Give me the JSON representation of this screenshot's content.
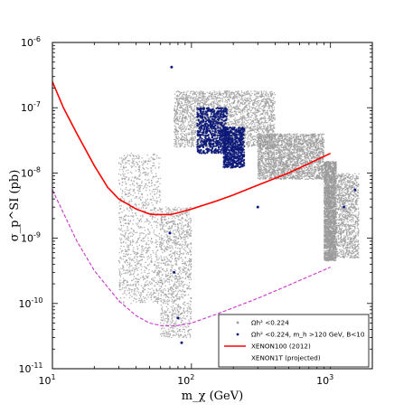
{
  "chart_data": {
    "type": "scatter",
    "title": "",
    "xlabel": "m_χ (GeV)",
    "ylabel": "σ_p^SI (pb)",
    "x_scale": "log",
    "y_scale": "log",
    "xlim": [
      10,
      2000
    ],
    "ylim": [
      1e-11,
      1e-06
    ],
    "x_ticks": [
      {
        "value": 10,
        "base": "10",
        "exp": "1"
      },
      {
        "value": 100,
        "base": "10",
        "exp": "2"
      },
      {
        "value": 1000,
        "base": "10",
        "exp": "3"
      }
    ],
    "y_ticks": [
      {
        "value": 1e-11,
        "base": "10",
        "exp": "-11"
      },
      {
        "value": 1e-10,
        "base": "10",
        "exp": "-10"
      },
      {
        "value": 1e-09,
        "base": "10",
        "exp": "-9"
      },
      {
        "value": 1e-08,
        "base": "10",
        "exp": "-8"
      },
      {
        "value": 1e-07,
        "base": "10",
        "exp": "-7"
      },
      {
        "value": 1e-06,
        "base": "10",
        "exp": "-6"
      }
    ],
    "grid": false,
    "legend_position": "bottom-right",
    "series": [
      {
        "name": "Ωh² <0.224",
        "kind": "scatter",
        "color": "#9a9a9a",
        "regions": [
          {
            "x": [
              75,
              400
            ],
            "y": [
              2.5e-08,
              1.8e-07
            ]
          },
          {
            "x": [
              300,
              900
            ],
            "y": [
              8e-09,
              4e-08
            ]
          },
          {
            "x": [
              900,
              1100
            ],
            "y": [
              4.5e-10,
              1.5e-08
            ]
          },
          {
            "x": [
              30,
              60
            ],
            "y": [
              1e-10,
              2e-08
            ]
          },
          {
            "x": [
              60,
              100
            ],
            "y": [
              3e-11,
              3e-09
            ]
          },
          {
            "x": [
              1100,
              1600
            ],
            "y": [
              5e-10,
              1e-08
            ]
          }
        ]
      },
      {
        "name": "Ωh² <0.224, m_h >120 GeV, B<10",
        "kind": "scatter",
        "color": "#0d1a78",
        "regions": [
          {
            "x": [
              110,
              180
            ],
            "y": [
              2e-08,
              1e-07
            ]
          },
          {
            "x": [
              170,
              240
            ],
            "y": [
              1.2e-08,
              5e-08
            ]
          }
        ],
        "points": [
          {
            "x": 72,
            "y": 4.2e-07
          },
          {
            "x": 70,
            "y": 1.2e-09
          },
          {
            "x": 75,
            "y": 3e-10
          },
          {
            "x": 80,
            "y": 6e-11
          },
          {
            "x": 85,
            "y": 2.5e-11
          },
          {
            "x": 1250,
            "y": 3e-09
          },
          {
            "x": 1500,
            "y": 5.5e-09
          },
          {
            "x": 300,
            "y": 3e-09
          }
        ]
      },
      {
        "name": "XENON100 (2012)",
        "kind": "line",
        "color": "#ff0000",
        "style": "solid",
        "x": [
          10,
          12,
          15,
          20,
          25,
          30,
          40,
          50,
          55,
          70,
          80,
          100,
          150,
          200,
          300,
          500,
          700,
          1000
        ],
        "y": [
          2.5e-07,
          1e-07,
          4e-08,
          1.3e-08,
          6e-09,
          4e-09,
          2.8e-09,
          2.35e-09,
          2.3e-09,
          2.3e-09,
          2.45e-09,
          2.8e-09,
          3.7e-09,
          4.6e-09,
          6.5e-09,
          1e-08,
          1.4e-08,
          2e-08
        ]
      },
      {
        "name": "XENON1T (projected)",
        "kind": "line",
        "color": "#cc33cc",
        "style": "dashed",
        "x": [
          10,
          15,
          20,
          30,
          40,
          50,
          60,
          70,
          80,
          100,
          150,
          200,
          300,
          500,
          700,
          1000
        ],
        "y": [
          5.5e-09,
          9e-10,
          3.2e-10,
          1.1e-10,
          6.5e-11,
          5e-11,
          4.6e-11,
          4.5e-11,
          4.6e-11,
          5e-11,
          6.8e-11,
          8.6e-11,
          1.2e-10,
          1.9e-10,
          2.6e-10,
          3.6e-10
        ]
      }
    ]
  }
}
